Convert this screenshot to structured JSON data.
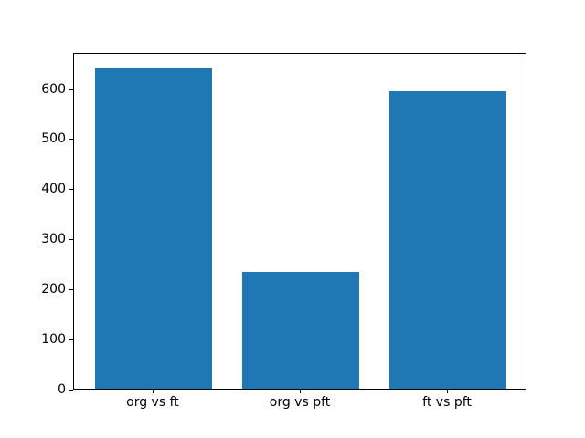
{
  "figure": {
    "background": "#ffffff",
    "spine_color": "#000000",
    "tick_color": "#000000",
    "tick_label_color": "#000000"
  },
  "chart_data": {
    "type": "bar",
    "categories": [
      "org vs ft",
      "org vs pft",
      "ft vs pft"
    ],
    "values": [
      640,
      233,
      593
    ],
    "title": "",
    "xlabel": "",
    "ylabel": "",
    "ylim": [
      0,
      672
    ],
    "xlim": [
      -0.54,
      2.54
    ],
    "yticks": [
      0,
      100,
      200,
      300,
      400,
      500,
      600
    ],
    "bar_color": "#1f77b4",
    "bar_width": 0.8,
    "grid": false,
    "legend": false
  }
}
